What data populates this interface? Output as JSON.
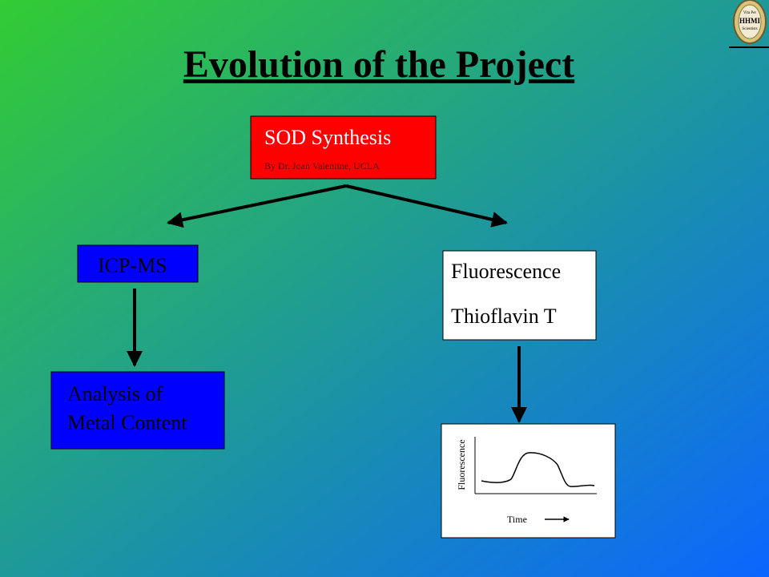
{
  "title": "Evolution of the Project",
  "logo": {
    "lines": [
      "Vita Per",
      "HHMI",
      "Scientists"
    ]
  },
  "nodes": [
    {
      "label": "SOD Synthesis",
      "sublabel": "By Dr. Joan Valentine, UCLA"
    },
    {
      "label": "ICP-MS"
    },
    {
      "lines": [
        "Analysis of",
        "Metal Content"
      ]
    },
    {
      "lines": [
        "Fluorescence",
        "Thioflavin T"
      ]
    },
    {
      "y_label": "Fluorescence",
      "x_label": "Time"
    }
  ]
}
